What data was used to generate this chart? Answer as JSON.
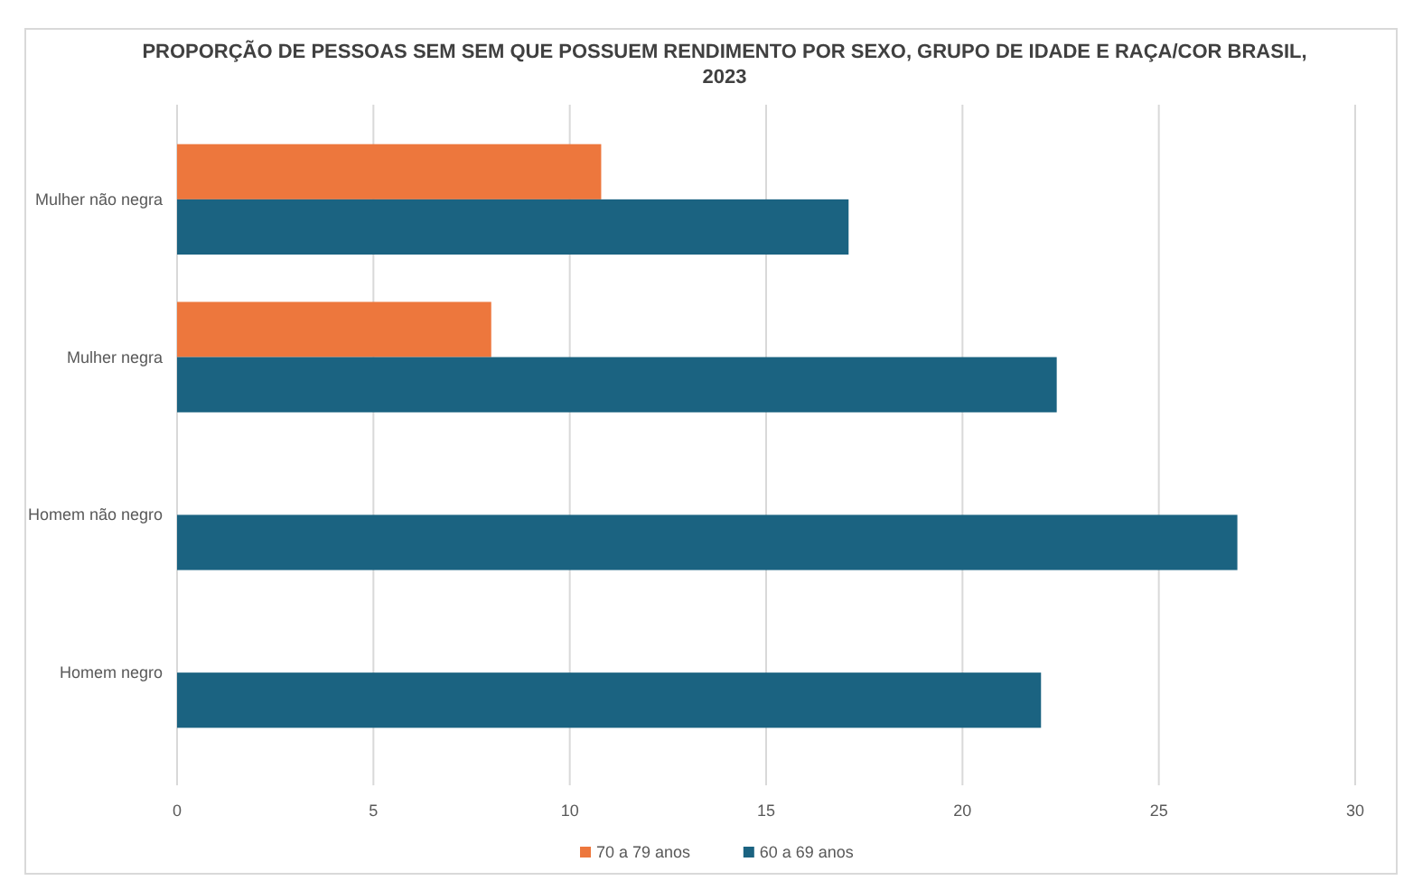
{
  "chart_data": {
    "type": "bar",
    "orientation": "horizontal",
    "title": "PROPORÇÃO DE PESSOAS SEM SEM QUE POSSUEM RENDIMENTO POR SEXO, GRUPO DE IDADE E RAÇA/COR BRASIL, 2023",
    "categories": [
      "Mulher não negra",
      "Mulher negra",
      "Homem não negro",
      "Homem negro"
    ],
    "series": [
      {
        "name": "70 a 79 anos",
        "color": "#ed773d",
        "values": [
          10.8,
          8.0,
          null,
          null
        ]
      },
      {
        "name": "60 a 69 anos",
        "color": "#1b6381",
        "values": [
          17.1,
          22.4,
          27.0,
          22.0
        ]
      }
    ],
    "xlim": [
      0,
      30
    ],
    "xticks": [
      0,
      5,
      10,
      15,
      20,
      25,
      30
    ],
    "grid": "x",
    "legend": "bottom"
  }
}
